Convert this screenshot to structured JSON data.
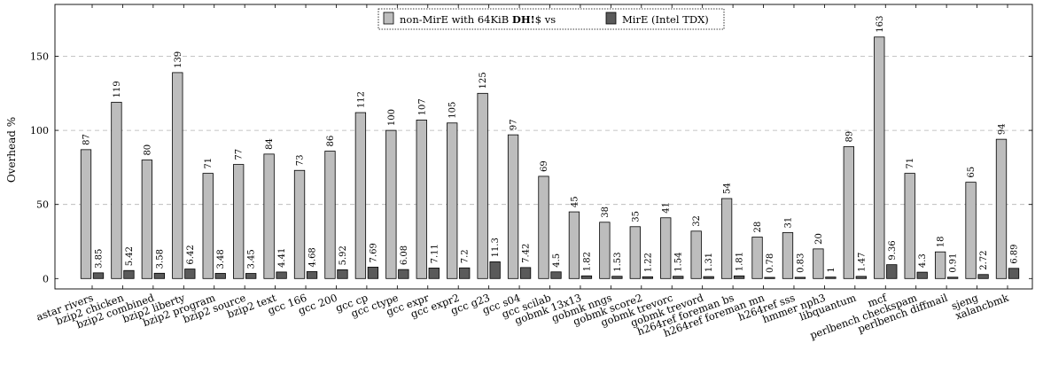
{
  "chart_data": {
    "type": "bar",
    "title": "",
    "xlabel": "",
    "ylabel": "Overhead %",
    "ylim": [
      -7,
      185
    ],
    "yticks": [
      0,
      50,
      100,
      150
    ],
    "grid": "horizontal dashed",
    "legend_position": "top-center",
    "legend_prefix": "non-MirE with 64KiB ",
    "legend_bold": "DH!",
    "legend_suffix": "$ vs",
    "categories": [
      "astar rivers",
      "bzip2 chicken",
      "bzip2 combined",
      "bzip2 liberty",
      "bzip2 program",
      "bzip2 source",
      "bzip2 text",
      "gcc 166",
      "gcc 200",
      "gcc cp",
      "gcc ctype",
      "gcc expr",
      "gcc expr2",
      "gcc g23",
      "gcc s04",
      "gcc scilab",
      "gobmk 13x13",
      "gobmk nngs",
      "gobmk score2",
      "gobmk trevorc",
      "gobmk trevord",
      "h264ref foreman bs",
      "h264ref foreman mn",
      "h264ref sss",
      "hmmer nph3",
      "libquantum",
      "mcf",
      "perlbench checkspam",
      "perlbench diffmail",
      "sjeng",
      "xalancbmk"
    ],
    "series": [
      {
        "name": "non-MirE with 64KiB DH!$ vs",
        "color": "#bdbdbd",
        "values": [
          87,
          119,
          80,
          139,
          71,
          77,
          84,
          73,
          86,
          112,
          100,
          107,
          105,
          125,
          97,
          69,
          45,
          38,
          35,
          41,
          32,
          54,
          28,
          31,
          20,
          89,
          163,
          71,
          18,
          65,
          94
        ],
        "labels": [
          "87",
          "119",
          "80",
          "139",
          "71",
          "77",
          "84",
          "73",
          "86",
          "112",
          "100",
          "107",
          "105",
          "125",
          "97",
          "69",
          "45",
          "38",
          "35",
          "41",
          "32",
          "54",
          "28",
          "31",
          "20",
          "89",
          "163",
          "71",
          "18",
          "65",
          "94"
        ]
      },
      {
        "name": "MirE (Intel TDX)",
        "color": "#5a5a5a",
        "values": [
          3.85,
          5.42,
          3.58,
          6.42,
          3.48,
          3.45,
          4.41,
          4.68,
          5.92,
          7.69,
          6.08,
          7.11,
          7.2,
          11.3,
          7.42,
          4.5,
          1.82,
          1.53,
          1.22,
          1.54,
          1.31,
          1.81,
          0.78,
          0.83,
          1,
          1.47,
          9.36,
          4.3,
          0.91,
          2.72,
          6.89
        ],
        "labels": [
          "3.85",
          "5.42",
          "3.58",
          "6.42",
          "3.48",
          "3.45",
          "4.41",
          "4.68",
          "5.92",
          "7.69",
          "6.08",
          "7.11",
          "7.2",
          "11.3",
          "7.42",
          "4.5",
          "1.82",
          "1.53",
          "1.22",
          "1.54",
          "1.31",
          "1.81",
          "0.78",
          "0.83",
          "1",
          "1.47",
          "9.36",
          "4.3",
          "0.91",
          "2.72",
          "6.89"
        ]
      }
    ]
  }
}
